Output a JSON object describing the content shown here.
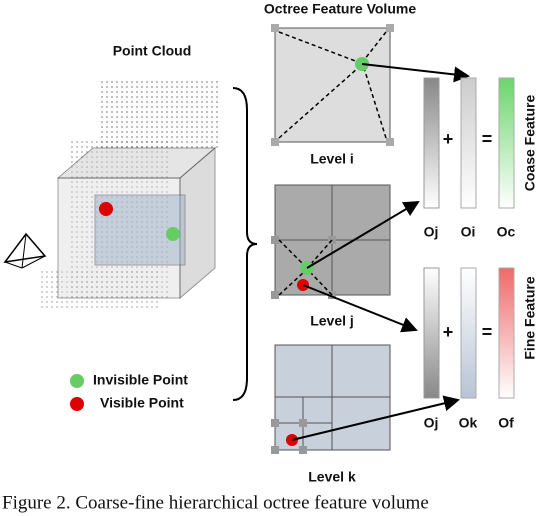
{
  "title": "Octree Feature Volume",
  "point_cloud": {
    "label": "Point Cloud"
  },
  "levels": [
    {
      "label": "Level i"
    },
    {
      "label": "Level j"
    },
    {
      "label": "Level k"
    }
  ],
  "legend": [
    {
      "label": "Invisible Point"
    },
    {
      "label": "Visible Point"
    }
  ],
  "features": [
    {
      "name": "Coase Feature",
      "inputs": [
        "Oj",
        "Oi"
      ],
      "output": "Oc",
      "plus": "+",
      "equals": "="
    },
    {
      "name": "Fine Feature",
      "inputs": [
        "Oj",
        "Ok"
      ],
      "output": "Of",
      "plus": "+",
      "equals": "="
    }
  ],
  "caption": "Figure 2. Coarse-fine hierarchical octree feature volume"
}
